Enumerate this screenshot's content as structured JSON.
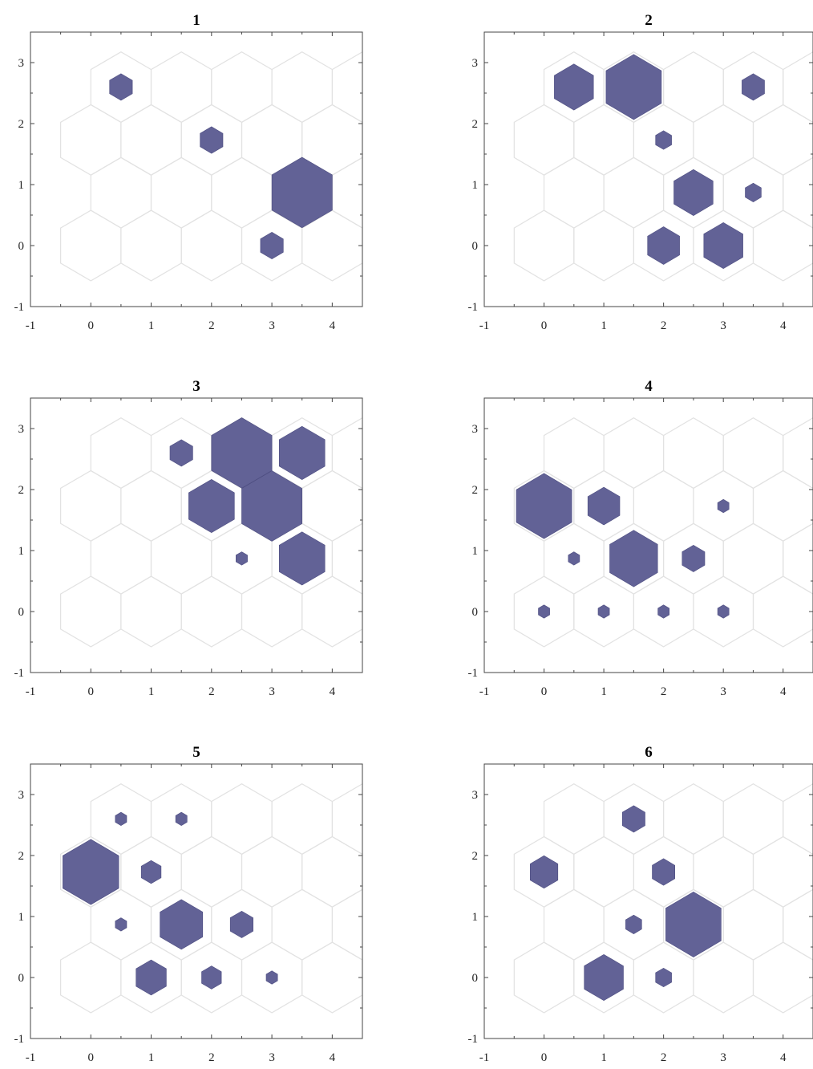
{
  "figure": {
    "hit_color": "#626296",
    "grid_color": "#e2e2e2"
  },
  "chart_data": [
    {
      "type": "scatter",
      "title": "1",
      "xlim": [
        -1,
        4.5
      ],
      "ylim": [
        -1,
        3.5
      ],
      "xticks": [
        -1,
        0,
        1,
        2,
        3,
        4
      ],
      "yticks": [
        -1,
        0,
        1,
        2,
        3
      ],
      "grid_rows": 4,
      "grid_cols": 5,
      "grid": "hexagonal",
      "x": [
        0.5,
        2,
        3.5,
        3
      ],
      "y": [
        2.6,
        1.73,
        0.87,
        0
      ],
      "hits": [
        1,
        1,
        7,
        1
      ]
    },
    {
      "type": "scatter",
      "title": "2",
      "xlim": [
        -1,
        4.5
      ],
      "ylim": [
        -1,
        3.5
      ],
      "xticks": [
        -1,
        0,
        1,
        2,
        3,
        4
      ],
      "yticks": [
        -1,
        0,
        1,
        2,
        3
      ],
      "grid_rows": 4,
      "grid_cols": 5,
      "grid": "hexagonal",
      "x": [
        0.5,
        1.5,
        3.5,
        2,
        2.5,
        3.5,
        2,
        3
      ],
      "y": [
        2.6,
        2.6,
        2.6,
        1.73,
        0.87,
        0.87,
        0,
        0
      ],
      "hits": [
        3,
        6,
        1,
        0.5,
        3,
        0.5,
        2,
        3
      ]
    },
    {
      "type": "scatter",
      "title": "3",
      "xlim": [
        -1,
        4.5
      ],
      "ylim": [
        -1,
        3.5
      ],
      "xticks": [
        -1,
        0,
        1,
        2,
        3,
        4
      ],
      "yticks": [
        -1,
        0,
        1,
        2,
        3
      ],
      "grid_rows": 4,
      "grid_cols": 5,
      "grid": "hexagonal",
      "x": [
        1.5,
        2.5,
        3.5,
        2,
        3,
        2.5,
        3.5
      ],
      "y": [
        2.6,
        2.6,
        2.6,
        1.73,
        1.73,
        0.87,
        0.87
      ],
      "hits": [
        1,
        7,
        4,
        4,
        7,
        0.25,
        4
      ]
    },
    {
      "type": "scatter",
      "title": "4",
      "xlim": [
        -1,
        4.5
      ],
      "ylim": [
        -1,
        3.5
      ],
      "xticks": [
        -1,
        0,
        1,
        2,
        3,
        4
      ],
      "yticks": [
        -1,
        0,
        1,
        2,
        3
      ],
      "grid_rows": 4,
      "grid_cols": 5,
      "grid": "hexagonal",
      "x": [
        0,
        1,
        3,
        0.5,
        1.5,
        2.5,
        0,
        1,
        2,
        3
      ],
      "y": [
        1.73,
        1.73,
        1.73,
        0.87,
        0.87,
        0.87,
        0,
        0,
        0,
        0
      ],
      "hits": [
        6,
        2,
        0.25,
        0.25,
        4.5,
        1,
        0.25,
        0.25,
        0.25,
        0.25
      ]
    },
    {
      "type": "scatter",
      "title": "5",
      "xlim": [
        -1,
        4.5
      ],
      "ylim": [
        -1,
        3.5
      ],
      "xticks": [
        -1,
        0,
        1,
        2,
        3,
        4
      ],
      "yticks": [
        -1,
        0,
        1,
        2,
        3
      ],
      "grid_rows": 4,
      "grid_cols": 5,
      "grid": "hexagonal",
      "x": [
        0.5,
        1.5,
        0,
        1,
        0.5,
        1.5,
        2.5,
        1,
        2,
        3
      ],
      "y": [
        2.6,
        2.6,
        1.73,
        1.73,
        0.87,
        0.87,
        0.87,
        0,
        0,
        0
      ],
      "hits": [
        0.25,
        0.25,
        6,
        0.75,
        0.25,
        3.5,
        1,
        1.75,
        0.75,
        0.25
      ]
    },
    {
      "type": "scatter",
      "title": "6",
      "xlim": [
        -1,
        4.5
      ],
      "ylim": [
        -1,
        3.5
      ],
      "xticks": [
        -1,
        0,
        1,
        2,
        3,
        4
      ],
      "yticks": [
        -1,
        0,
        1,
        2,
        3
      ],
      "grid_rows": 4,
      "grid_cols": 5,
      "grid": "hexagonal",
      "x": [
        1.5,
        0,
        2,
        1.5,
        2.5,
        1,
        2
      ],
      "y": [
        2.6,
        1.73,
        1.73,
        0.87,
        0.87,
        0,
        0
      ],
      "hits": [
        1,
        1.5,
        1,
        0.5,
        6,
        3,
        0.5
      ]
    }
  ]
}
